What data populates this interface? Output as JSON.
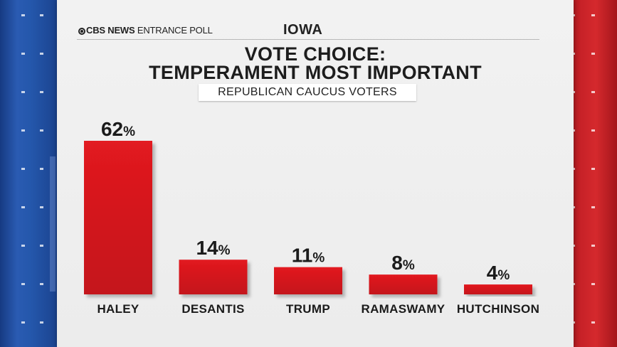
{
  "header": {
    "brand_bold": "CBS NEWS",
    "brand_rest": " ENTRANCE POLL",
    "state": "IOWA"
  },
  "title": {
    "line1": "VOTE CHOICE:",
    "line2": "TEMPERAMENT MOST IMPORTANT"
  },
  "subtitle": "REPUBLICAN CAUCUS VOTERS",
  "colors": {
    "bar": "#d3161c",
    "bar_shadow": "#9b0e12",
    "left_stripe": "#2457ab",
    "right_stripe": "#c62127"
  },
  "chart_data": {
    "type": "bar",
    "title": "VOTE CHOICE: TEMPERAMENT MOST IMPORTANT",
    "subtitle": "REPUBLICAN CAUCUS VOTERS",
    "categories": [
      "HALEY",
      "DESANTIS",
      "TRUMP",
      "RAMASWAMY",
      "HUTCHINSON"
    ],
    "values": [
      62,
      14,
      11,
      8,
      4
    ],
    "unit": "%",
    "xlabel": "",
    "ylabel": "",
    "ylim": [
      0,
      62
    ],
    "grid": false,
    "legend": "none"
  }
}
